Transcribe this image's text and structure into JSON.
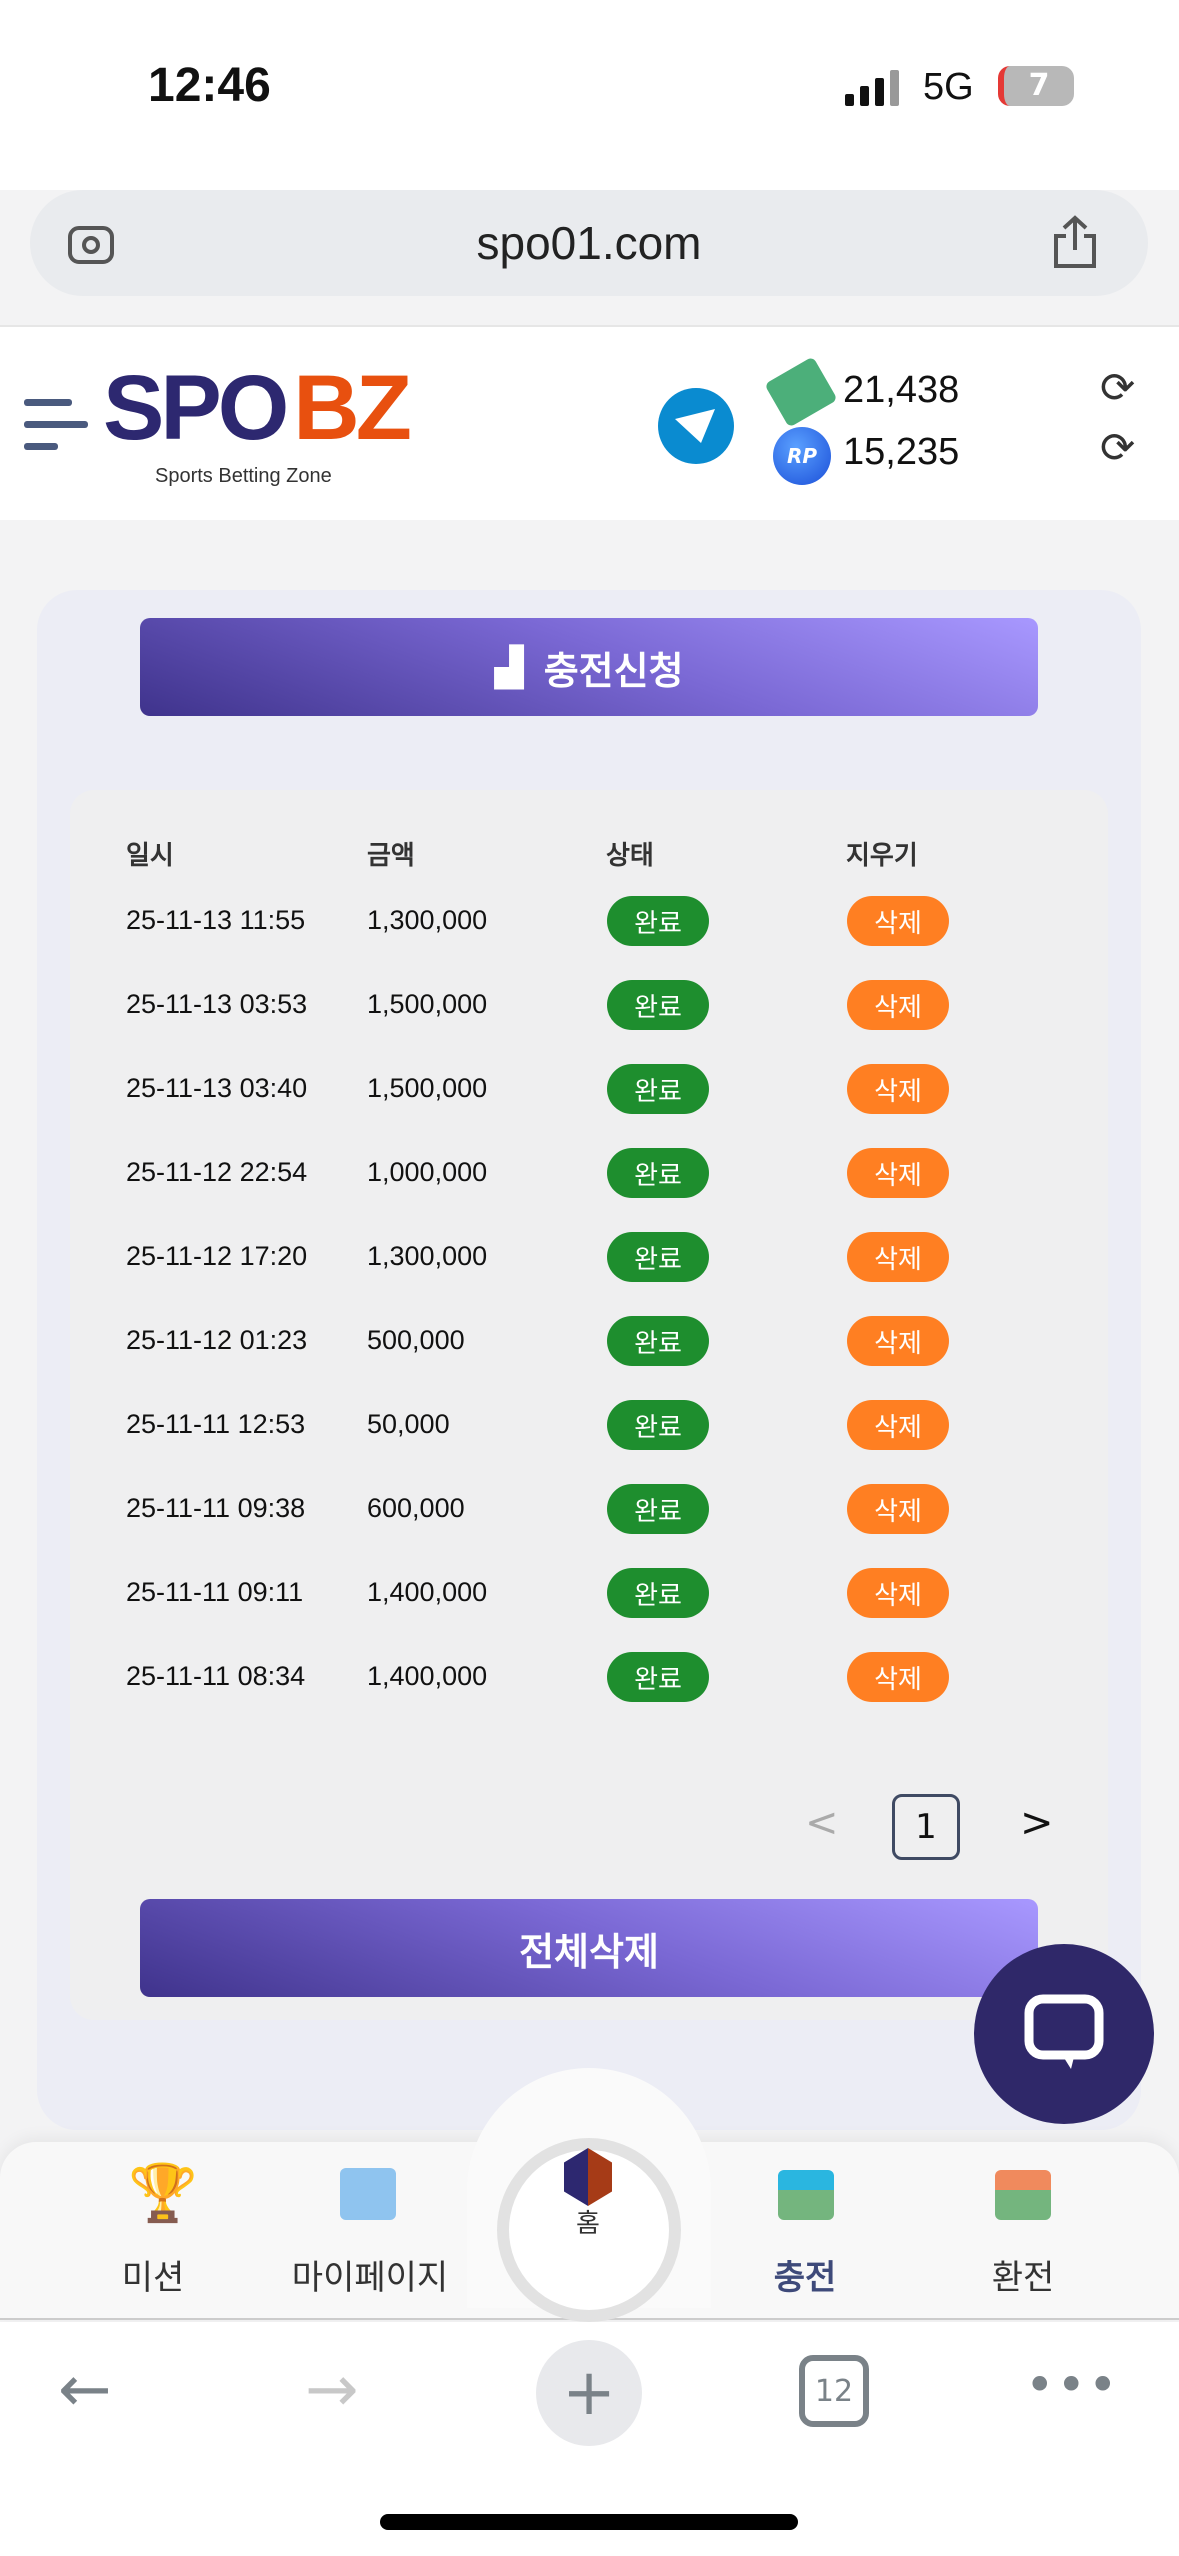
{
  "status_bar": {
    "time": "12:46",
    "network": "5G",
    "battery": "7"
  },
  "browser": {
    "url": "spo01.com",
    "tab_count": "12"
  },
  "header": {
    "logo_main_1": "SPO",
    "logo_main_2": "BZ",
    "logo_sub": "Sports Betting Zone",
    "cash_balance": "21,438",
    "point_balance": "15,235",
    "point_icon_text": "RP"
  },
  "main": {
    "request_button": "충전신청",
    "table": {
      "headers": [
        "일시",
        "금액",
        "상태",
        "지우기"
      ],
      "rows": [
        {
          "date": "25-11-13 11:55",
          "amount": "1,300,000",
          "status": "완료",
          "action": "삭제"
        },
        {
          "date": "25-11-13 03:53",
          "amount": "1,500,000",
          "status": "완료",
          "action": "삭제"
        },
        {
          "date": "25-11-13 03:40",
          "amount": "1,500,000",
          "status": "완료",
          "action": "삭제"
        },
        {
          "date": "25-11-12 22:54",
          "amount": "1,000,000",
          "status": "완료",
          "action": "삭제"
        },
        {
          "date": "25-11-12 17:20",
          "amount": "1,300,000",
          "status": "완료",
          "action": "삭제"
        },
        {
          "date": "25-11-12 01:23",
          "amount": "500,000",
          "status": "완료",
          "action": "삭제"
        },
        {
          "date": "25-11-11 12:53",
          "amount": "50,000",
          "status": "완료",
          "action": "삭제"
        },
        {
          "date": "25-11-11 09:38",
          "amount": "600,000",
          "status": "완료",
          "action": "삭제"
        },
        {
          "date": "25-11-11 09:11",
          "amount": "1,400,000",
          "status": "완료",
          "action": "삭제"
        },
        {
          "date": "25-11-11 08:34",
          "amount": "1,400,000",
          "status": "완료",
          "action": "삭제"
        }
      ]
    },
    "pagination": {
      "prev": "<",
      "current": "1",
      "next": ">"
    },
    "delete_all_button": "전체삭제"
  },
  "bottom_nav": {
    "items": [
      {
        "label": "미션",
        "icon": "trophy-icon"
      },
      {
        "label": "마이페이지",
        "icon": "folder-icon"
      },
      {
        "label": "홈",
        "icon": "home-logo-icon"
      },
      {
        "label": "충전",
        "icon": "deposit-icon"
      },
      {
        "label": "환전",
        "icon": "withdraw-icon"
      }
    ]
  },
  "colors": {
    "brand_navy": "#2d2870",
    "brand_orange": "#e8500f",
    "status_complete": "#1e8e2e",
    "delete": "#ff7f22",
    "button_purple": "#7a68d4"
  }
}
